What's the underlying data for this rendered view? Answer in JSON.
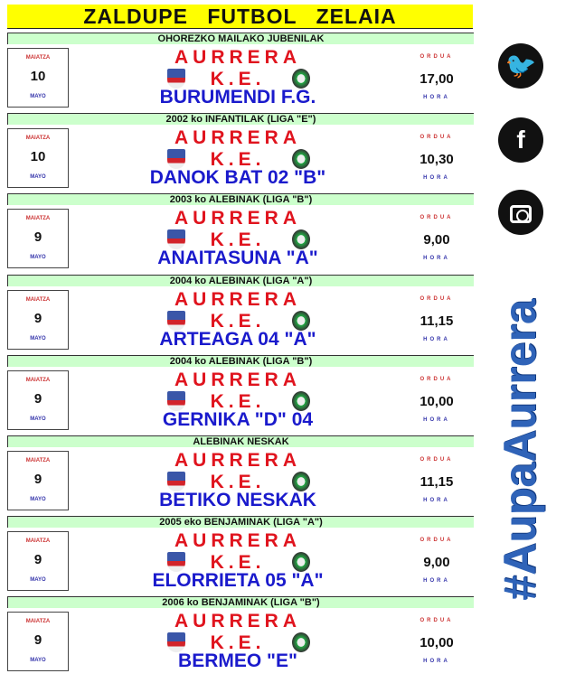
{
  "title": "ZALDUPE   FUTBOL   ZELAIA",
  "labels": {
    "month_eu": "MAIATZA",
    "month_es": "MAYO",
    "time_eu": "ORDUA",
    "time_es": "HORA",
    "home": "AURRERA K.E."
  },
  "matches": [
    {
      "category": "OHOREZKO MAILAKO JUBENILAK",
      "day": "10",
      "away": "BURUMENDI F.G.",
      "time": "17,00"
    },
    {
      "category": "2002 ko INFANTILAK (LIGA \"E\")",
      "day": "10",
      "away": "DANOK BAT 02 \"B\"",
      "time": "10,30"
    },
    {
      "category": "2003 ko ALEBINAK (LIGA \"B\")",
      "day": "9",
      "away": "ANAITASUNA \"A\"",
      "time": "9,00"
    },
    {
      "category": "2004 ko ALEBINAK (LIGA \"A\")",
      "day": "9",
      "away": "ARTEAGA 04 \"A\"",
      "time": "11,15"
    },
    {
      "category": "2004 ko ALEBINAK (LIGA \"B\")",
      "day": "9",
      "away": "GERNIKA \"D\" 04",
      "time": "10,00"
    },
    {
      "category": "ALEBINAK NESKAK",
      "day": "9",
      "away": "BETIKO NESKAK",
      "time": "11,15"
    },
    {
      "category": "2005 eko BENJAMINAK (LIGA \"A\")",
      "day": "9",
      "away": "ELORRIETA 05 \"A\"",
      "time": "9,00"
    },
    {
      "category": "2006 ko BENJAMINAK (LIGA \"B\")",
      "day": "9",
      "away": "BERMEO \"E\"",
      "time": "10,00"
    }
  ],
  "social": [
    "twitter-icon",
    "facebook-icon",
    "instagram-icon"
  ],
  "hashtag": "#AupaAurrera"
}
